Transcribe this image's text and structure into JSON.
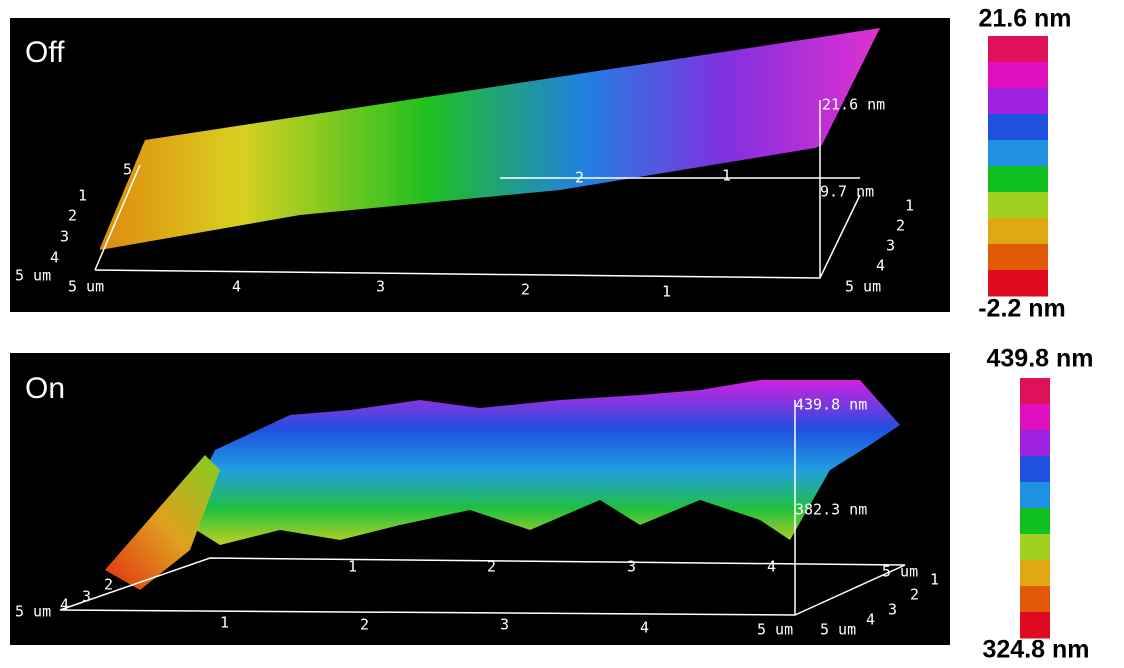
{
  "panels": [
    {
      "label": "Off",
      "colorbar": {
        "max": "21.6 nm",
        "min": "-2.2 nm"
      },
      "z_labels": [
        "21.6 nm",
        "9.7 nm"
      ],
      "x_ticks": [
        "5 um",
        "4",
        "3",
        "2",
        "1",
        "5 um"
      ],
      "back_x_ticks": [
        "2",
        "1"
      ],
      "left_y_ticks": [
        "5",
        "1",
        "2",
        "3",
        "4",
        "5 um"
      ],
      "right_y_ticks": [
        "1",
        "2",
        "3",
        "4"
      ]
    },
    {
      "label": "On",
      "colorbar": {
        "max": "439.8 nm",
        "min": "324.8 nm"
      },
      "z_labels": [
        "439.8 nm",
        "382.3 nm"
      ],
      "x_ticks": [
        "1",
        "2",
        "3",
        "4",
        "5 um"
      ],
      "back_x_ticks": [
        "1",
        "2",
        "3",
        "4",
        "5 um"
      ],
      "left_y_ticks": [
        "2",
        "3",
        "4",
        "5 um"
      ],
      "right_y_ticks": [
        "1",
        "2",
        "3",
        "4",
        "5 um"
      ]
    }
  ]
}
